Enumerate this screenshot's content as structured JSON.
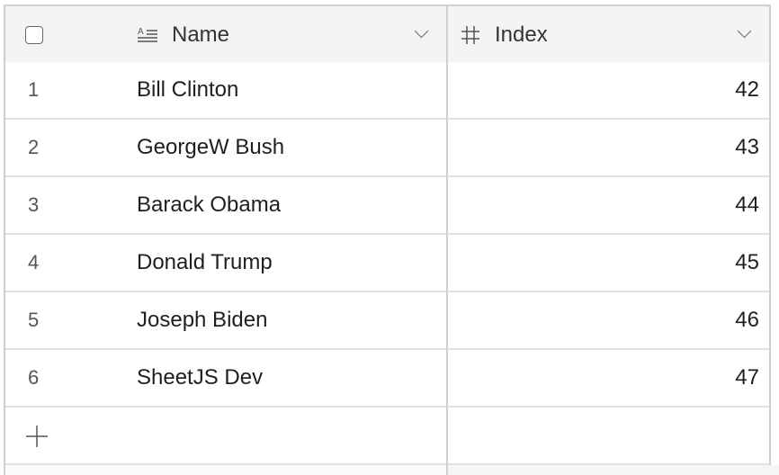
{
  "header": {
    "columns": [
      {
        "label": "Name",
        "icon": "text-field-icon"
      },
      {
        "label": "Index",
        "icon": "number-field-icon"
      }
    ]
  },
  "rows": [
    {
      "num": "1",
      "name": "Bill Clinton",
      "index": "42"
    },
    {
      "num": "2",
      "name": "GeorgeW Bush",
      "index": "43"
    },
    {
      "num": "3",
      "name": "Barack Obama",
      "index": "44"
    },
    {
      "num": "4",
      "name": "Donald Trump",
      "index": "45"
    },
    {
      "num": "5",
      "name": "Joseph Biden",
      "index": "46"
    },
    {
      "num": "6",
      "name": "SheetJS Dev",
      "index": "47"
    }
  ],
  "add_row_icon": "plus-icon"
}
